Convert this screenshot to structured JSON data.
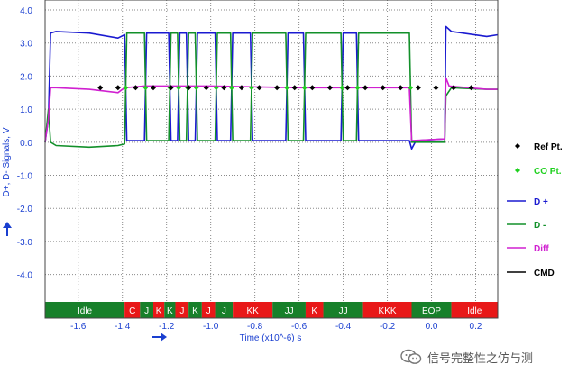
{
  "chart_data": {
    "type": "line",
    "title": "",
    "xlabel": "Time (x10^-6) s",
    "ylabel": "D+, D- Signals, V",
    "xlim": [
      -1.75,
      0.3
    ],
    "ylim": [
      -4.8,
      4.3
    ],
    "x_ticks": [
      "-1.6",
      "-1.4",
      "-1.2",
      "-1.0",
      "-0.8",
      "-0.6",
      "-0.4",
      "-0.2",
      "0.0",
      "0.2"
    ],
    "y_ticks": [
      "4.0",
      "3.0",
      "2.0",
      "1.0",
      "0.0",
      "-1.0",
      "-2.0",
      "-3.0",
      "-4.0"
    ],
    "grid": true,
    "legend_position": "right",
    "legend": [
      {
        "label": "Ref Pt.",
        "color": "#000000",
        "kind": "marker"
      },
      {
        "label": "CO Pt.",
        "color": "#1ed01e",
        "kind": "marker"
      },
      {
        "label": "D +",
        "color": "#1a1ad0",
        "kind": "line"
      },
      {
        "label": "D -",
        "color": "#12902a",
        "kind": "line"
      },
      {
        "label": "Diff",
        "color": "#d020d0",
        "kind": "line"
      },
      {
        "label": "CMD",
        "color": "#000000",
        "kind": "line"
      }
    ],
    "series": [
      {
        "name": "D +",
        "color": "#1a1ad0",
        "x": [
          -1.75,
          -1.735,
          -1.725,
          -1.7,
          -1.55,
          -1.42,
          -1.39,
          -1.38,
          -1.3,
          -1.29,
          -1.19,
          -1.18,
          -1.15,
          -1.14,
          -1.11,
          -1.1,
          -1.07,
          -1.06,
          -0.98,
          -0.97,
          -0.91,
          -0.9,
          -0.82,
          -0.81,
          -0.66,
          -0.65,
          -0.58,
          -0.57,
          -0.41,
          -0.4,
          -0.34,
          -0.33,
          -0.1,
          -0.09,
          -0.07,
          0.06,
          0.065,
          0.09,
          0.25,
          0.3
        ],
        "y": [
          0.0,
          0.7,
          3.3,
          3.35,
          3.3,
          3.15,
          3.25,
          0.05,
          0.05,
          3.3,
          3.3,
          0.05,
          0.05,
          3.3,
          3.3,
          0.05,
          0.05,
          3.3,
          3.3,
          0.05,
          0.05,
          3.3,
          3.3,
          0.05,
          0.05,
          3.3,
          3.3,
          0.05,
          0.05,
          3.3,
          3.3,
          0.05,
          0.05,
          -0.2,
          0.05,
          0.1,
          3.5,
          3.35,
          3.2,
          3.25
        ]
      },
      {
        "name": "D -",
        "color": "#12902a",
        "x": [
          -1.75,
          -1.735,
          -1.725,
          -1.7,
          -1.55,
          -1.42,
          -1.39,
          -1.38,
          -1.3,
          -1.29,
          -1.19,
          -1.18,
          -1.15,
          -1.14,
          -1.11,
          -1.1,
          -1.07,
          -1.06,
          -0.98,
          -0.97,
          -0.91,
          -0.9,
          -0.82,
          -0.81,
          -0.66,
          -0.65,
          -0.58,
          -0.57,
          -0.41,
          -0.4,
          -0.34,
          -0.33,
          -0.1,
          -0.09,
          -0.07,
          0.06,
          0.065,
          0.09,
          0.25,
          0.3
        ],
        "y": [
          0.0,
          1.0,
          0.0,
          -0.1,
          -0.15,
          -0.1,
          -0.05,
          3.3,
          3.3,
          0.05,
          0.05,
          3.3,
          3.3,
          0.05,
          0.05,
          3.3,
          3.3,
          0.05,
          0.05,
          3.3,
          3.3,
          0.05,
          0.05,
          3.3,
          3.3,
          0.05,
          0.05,
          3.3,
          3.3,
          0.05,
          0.05,
          3.3,
          3.3,
          0.0,
          0.0,
          0.0,
          1.4,
          1.65,
          1.6,
          1.6
        ]
      },
      {
        "name": "Diff",
        "color": "#d020d0",
        "x": [
          -1.75,
          -1.735,
          -1.725,
          -1.7,
          -1.55,
          -1.42,
          -1.39,
          -1.3,
          -1.0,
          -0.6,
          -0.3,
          -0.1,
          -0.095,
          -0.09,
          0.06,
          0.065,
          0.08,
          0.25,
          0.3
        ],
        "y": [
          0.0,
          0.7,
          1.65,
          1.65,
          1.6,
          1.5,
          1.65,
          1.7,
          1.7,
          1.65,
          1.65,
          1.65,
          0.8,
          0.05,
          0.1,
          1.95,
          1.7,
          1.6,
          1.6
        ]
      }
    ],
    "ref_points": {
      "name": "Ref Pt.",
      "x": [
        -1.5,
        -1.42,
        -1.34,
        -1.26,
        -1.18,
        -1.1,
        -1.02,
        -0.94,
        -0.86,
        -0.78,
        -0.7,
        -0.62,
        -0.54,
        -0.46,
        -0.38,
        -0.3,
        -0.22,
        -0.14,
        -0.06,
        0.02,
        0.1,
        0.18
      ],
      "y": 1.65
    },
    "co_points": {
      "name": "CO Pt.",
      "x": [
        -1.385,
        -1.295,
        -1.185,
        -1.145,
        -1.105,
        -1.065,
        -0.975,
        -0.905,
        -0.815,
        -0.655,
        -0.575,
        -0.405,
        -0.335,
        -0.095
      ],
      "y": 1.65
    },
    "bands": [
      {
        "label": "Idle",
        "start": -1.75,
        "end": -1.39,
        "color": "#17802a"
      },
      {
        "label": "C",
        "start": -1.39,
        "end": -1.32,
        "color": "#e81818"
      },
      {
        "label": "J",
        "start": -1.32,
        "end": -1.26,
        "color": "#17802a"
      },
      {
        "label": "K",
        "start": -1.26,
        "end": -1.21,
        "color": "#e81818"
      },
      {
        "label": "K",
        "start": -1.21,
        "end": -1.16,
        "color": "#17802a"
      },
      {
        "label": "J",
        "start": -1.16,
        "end": -1.1,
        "color": "#e81818"
      },
      {
        "label": "K",
        "start": -1.1,
        "end": -1.04,
        "color": "#17802a"
      },
      {
        "label": "J",
        "start": -1.04,
        "end": -0.98,
        "color": "#e81818"
      },
      {
        "label": "J",
        "start": -0.98,
        "end": -0.9,
        "color": "#17802a"
      },
      {
        "label": "KK",
        "start": -0.9,
        "end": -0.72,
        "color": "#e81818"
      },
      {
        "label": "JJ",
        "start": -0.72,
        "end": -0.57,
        "color": "#17802a"
      },
      {
        "label": "K",
        "start": -0.57,
        "end": -0.49,
        "color": "#e81818"
      },
      {
        "label": "JJ",
        "start": -0.49,
        "end": -0.31,
        "color": "#17802a"
      },
      {
        "label": "KKK",
        "start": -0.31,
        "end": -0.09,
        "color": "#e81818"
      },
      {
        "label": "EOP",
        "start": -0.09,
        "end": 0.09,
        "color": "#17802a"
      },
      {
        "label": "Idle",
        "start": 0.09,
        "end": 0.3,
        "color": "#e81818"
      }
    ]
  },
  "watermark": {
    "text": "信号完整性之仿与测",
    "icon": "wechat-icon"
  }
}
